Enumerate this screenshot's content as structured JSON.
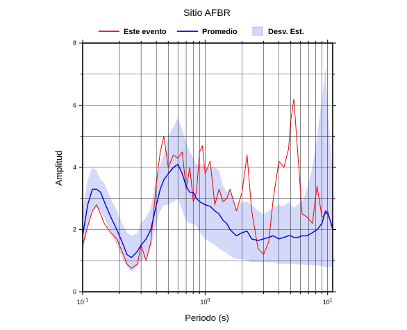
{
  "chart_data": {
    "type": "line",
    "title": "Sitio AFBR",
    "xlabel": "Periodo (s)",
    "ylabel": "Amplitud",
    "x_scale": "log",
    "xlim": [
      0.1,
      11
    ],
    "ylim": [
      0,
      8
    ],
    "y_ticks": [
      "0",
      "2",
      "4",
      "6",
      "8"
    ],
    "x_ticks": [
      {
        "value": 0.1,
        "base": "10",
        "exp": "-1"
      },
      {
        "value": 1,
        "base": "10",
        "exp": "0"
      },
      {
        "value": 10,
        "base": "10",
        "exp": "1"
      }
    ],
    "grid": true,
    "legend_position": "top",
    "legend": [
      {
        "label": "Este evento",
        "color": "#ee0000",
        "kind": "line"
      },
      {
        "label": "Promedio",
        "color": "#0000dd",
        "kind": "line"
      },
      {
        "label": "Desv. Est.",
        "color": "#d4d8fb",
        "kind": "patch"
      }
    ],
    "x": [
      0.1,
      0.11,
      0.12,
      0.13,
      0.14,
      0.15,
      0.17,
      0.19,
      0.21,
      0.23,
      0.25,
      0.28,
      0.3,
      0.33,
      0.36,
      0.4,
      0.43,
      0.46,
      0.5,
      0.55,
      0.6,
      0.65,
      0.7,
      0.75,
      0.8,
      0.85,
      0.9,
      0.95,
      1.0,
      1.1,
      1.2,
      1.3,
      1.4,
      1.5,
      1.6,
      1.8,
      2.0,
      2.2,
      2.4,
      2.7,
      3.0,
      3.3,
      3.6,
      4.0,
      4.4,
      4.8,
      5.0,
      5.3,
      5.7,
      6.2,
      6.8,
      7.5,
      8.2,
      9.0,
      9.6,
      10.0,
      10.5,
      11.0
    ],
    "series": [
      {
        "name": "Este evento",
        "color": "#ee0000",
        "values": [
          1.5,
          2.1,
          2.6,
          2.8,
          2.5,
          2.2,
          1.9,
          1.7,
          1.3,
          0.9,
          0.75,
          0.9,
          1.5,
          1.0,
          1.6,
          3.5,
          4.5,
          5.0,
          4.0,
          4.4,
          4.3,
          4.5,
          3.3,
          4.0,
          2.9,
          3.2,
          4.5,
          4.7,
          3.8,
          4.2,
          2.8,
          3.3,
          2.9,
          3.0,
          3.3,
          2.6,
          3.2,
          4.4,
          2.6,
          1.4,
          1.2,
          1.6,
          3.0,
          4.2,
          4.0,
          4.6,
          5.5,
          6.2,
          4.5,
          2.5,
          2.4,
          2.2,
          3.4,
          2.4,
          2.5,
          2.6,
          2.3,
          2.1
        ]
      },
      {
        "name": "Promedio",
        "color": "#0000dd",
        "values": [
          1.8,
          2.8,
          3.3,
          3.3,
          3.2,
          2.9,
          2.4,
          2.0,
          1.6,
          1.2,
          1.1,
          1.3,
          1.5,
          1.7,
          2.0,
          2.8,
          3.3,
          3.6,
          3.8,
          4.0,
          4.1,
          3.8,
          3.4,
          3.2,
          3.2,
          3.0,
          2.9,
          2.85,
          2.8,
          2.75,
          2.6,
          2.5,
          2.3,
          2.2,
          2.0,
          1.8,
          1.9,
          1.95,
          1.7,
          1.65,
          1.7,
          1.75,
          1.8,
          1.7,
          1.75,
          1.8,
          1.8,
          1.75,
          1.75,
          1.8,
          1.8,
          1.9,
          2.0,
          2.2,
          2.6,
          2.5,
          2.3,
          2.0
        ]
      }
    ],
    "band": {
      "name": "Desv. Est.",
      "color": "#d4d8fb",
      "upper": [
        2.6,
        3.6,
        4.0,
        3.9,
        3.6,
        3.5,
        3.0,
        2.6,
        2.2,
        1.9,
        1.8,
        1.9,
        2.2,
        2.4,
        2.7,
        3.7,
        4.1,
        4.4,
        5.0,
        5.3,
        5.6,
        5.2,
        4.8,
        4.5,
        4.3,
        4.1,
        4.1,
        4.1,
        4.0,
        4.0,
        4.0,
        3.9,
        3.4,
        3.2,
        3.3,
        2.7,
        2.9,
        2.9,
        2.8,
        2.6,
        2.5,
        2.6,
        2.7,
        2.8,
        2.75,
        2.9,
        2.8,
        2.7,
        2.8,
        2.9,
        3.3,
        4.0,
        5.0,
        6.2,
        7.2,
        6.0,
        4.8,
        4.0
      ],
      "lower": [
        1.2,
        2.1,
        2.6,
        2.7,
        2.6,
        2.4,
        1.9,
        1.5,
        1.1,
        0.8,
        0.65,
        0.8,
        1.0,
        1.1,
        1.4,
        2.2,
        2.6,
        2.8,
        2.8,
        2.9,
        3.0,
        2.6,
        2.3,
        2.2,
        2.2,
        2.1,
        1.9,
        1.8,
        1.7,
        1.6,
        1.5,
        1.4,
        1.3,
        1.25,
        1.15,
        1.05,
        1.05,
        1.0,
        0.95,
        0.95,
        0.95,
        0.95,
        0.95,
        0.9,
        0.9,
        0.9,
        0.9,
        0.9,
        0.88,
        0.88,
        0.86,
        0.85,
        0.85,
        0.83,
        0.8,
        0.8,
        0.8,
        0.8
      ]
    }
  }
}
